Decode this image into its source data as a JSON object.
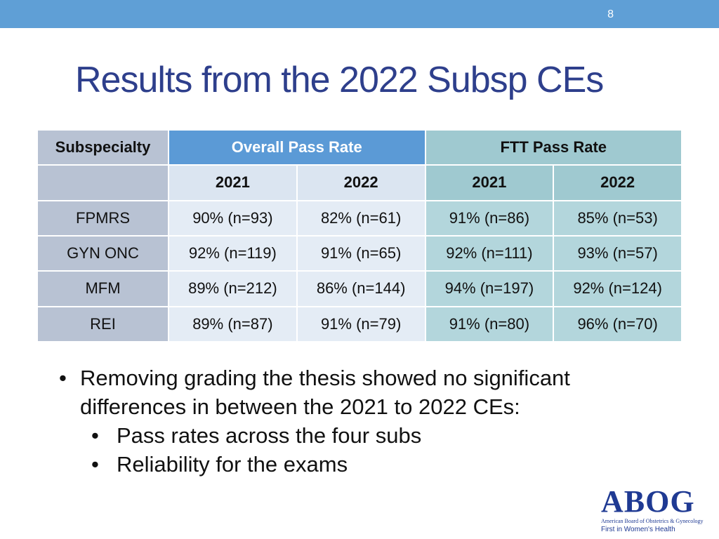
{
  "slide": {
    "page_number": "8",
    "title": "Results from the 2022 Subsp CEs"
  },
  "table": {
    "headers": {
      "subspecialty": "Subspecialty",
      "overall": "Overall Pass Rate",
      "ftt": "FTT Pass Rate"
    },
    "years": [
      "2021",
      "2022",
      "2021",
      "2022"
    ],
    "rows": [
      {
        "name": "FPMRS",
        "values": [
          "90% (n=93)",
          "82% (n=61)",
          "91% (n=86)",
          "85% (n=53)"
        ]
      },
      {
        "name": "GYN ONC",
        "values": [
          "92% (n=119)",
          "91% (n=65)",
          "92% (n=111)",
          "93% (n=57)"
        ]
      },
      {
        "name": "MFM",
        "values": [
          "89% (n=212)",
          "86% (n=144)",
          "94% (n=197)",
          "92% (n=124)"
        ]
      },
      {
        "name": "REI",
        "values": [
          "89% (n=87)",
          "91% (n=79)",
          "91% (n=80)",
          "96% (n=70)"
        ]
      }
    ]
  },
  "bullets": {
    "main": "Removing grading the thesis showed no significant differences in between the 2021 to 2022 CEs:",
    "main_line1": "Removing grading the thesis showed no significant",
    "main_line2": "differences in between the 2021 to 2022 CEs:",
    "sub": [
      "Pass rates across the four subs",
      "Reliability for the exams"
    ]
  },
  "logo": {
    "name": "ABOG",
    "subtitle": "American Board of Obstetrics & Gynecology",
    "tagline": "First in Women's Health"
  },
  "colors": {
    "top_bar": "#5f9fd6",
    "title": "#2e3f8c",
    "overall_header": "#5b9ad6",
    "ftt_header": "#9fc9d0",
    "logo": "#1f3a93"
  }
}
